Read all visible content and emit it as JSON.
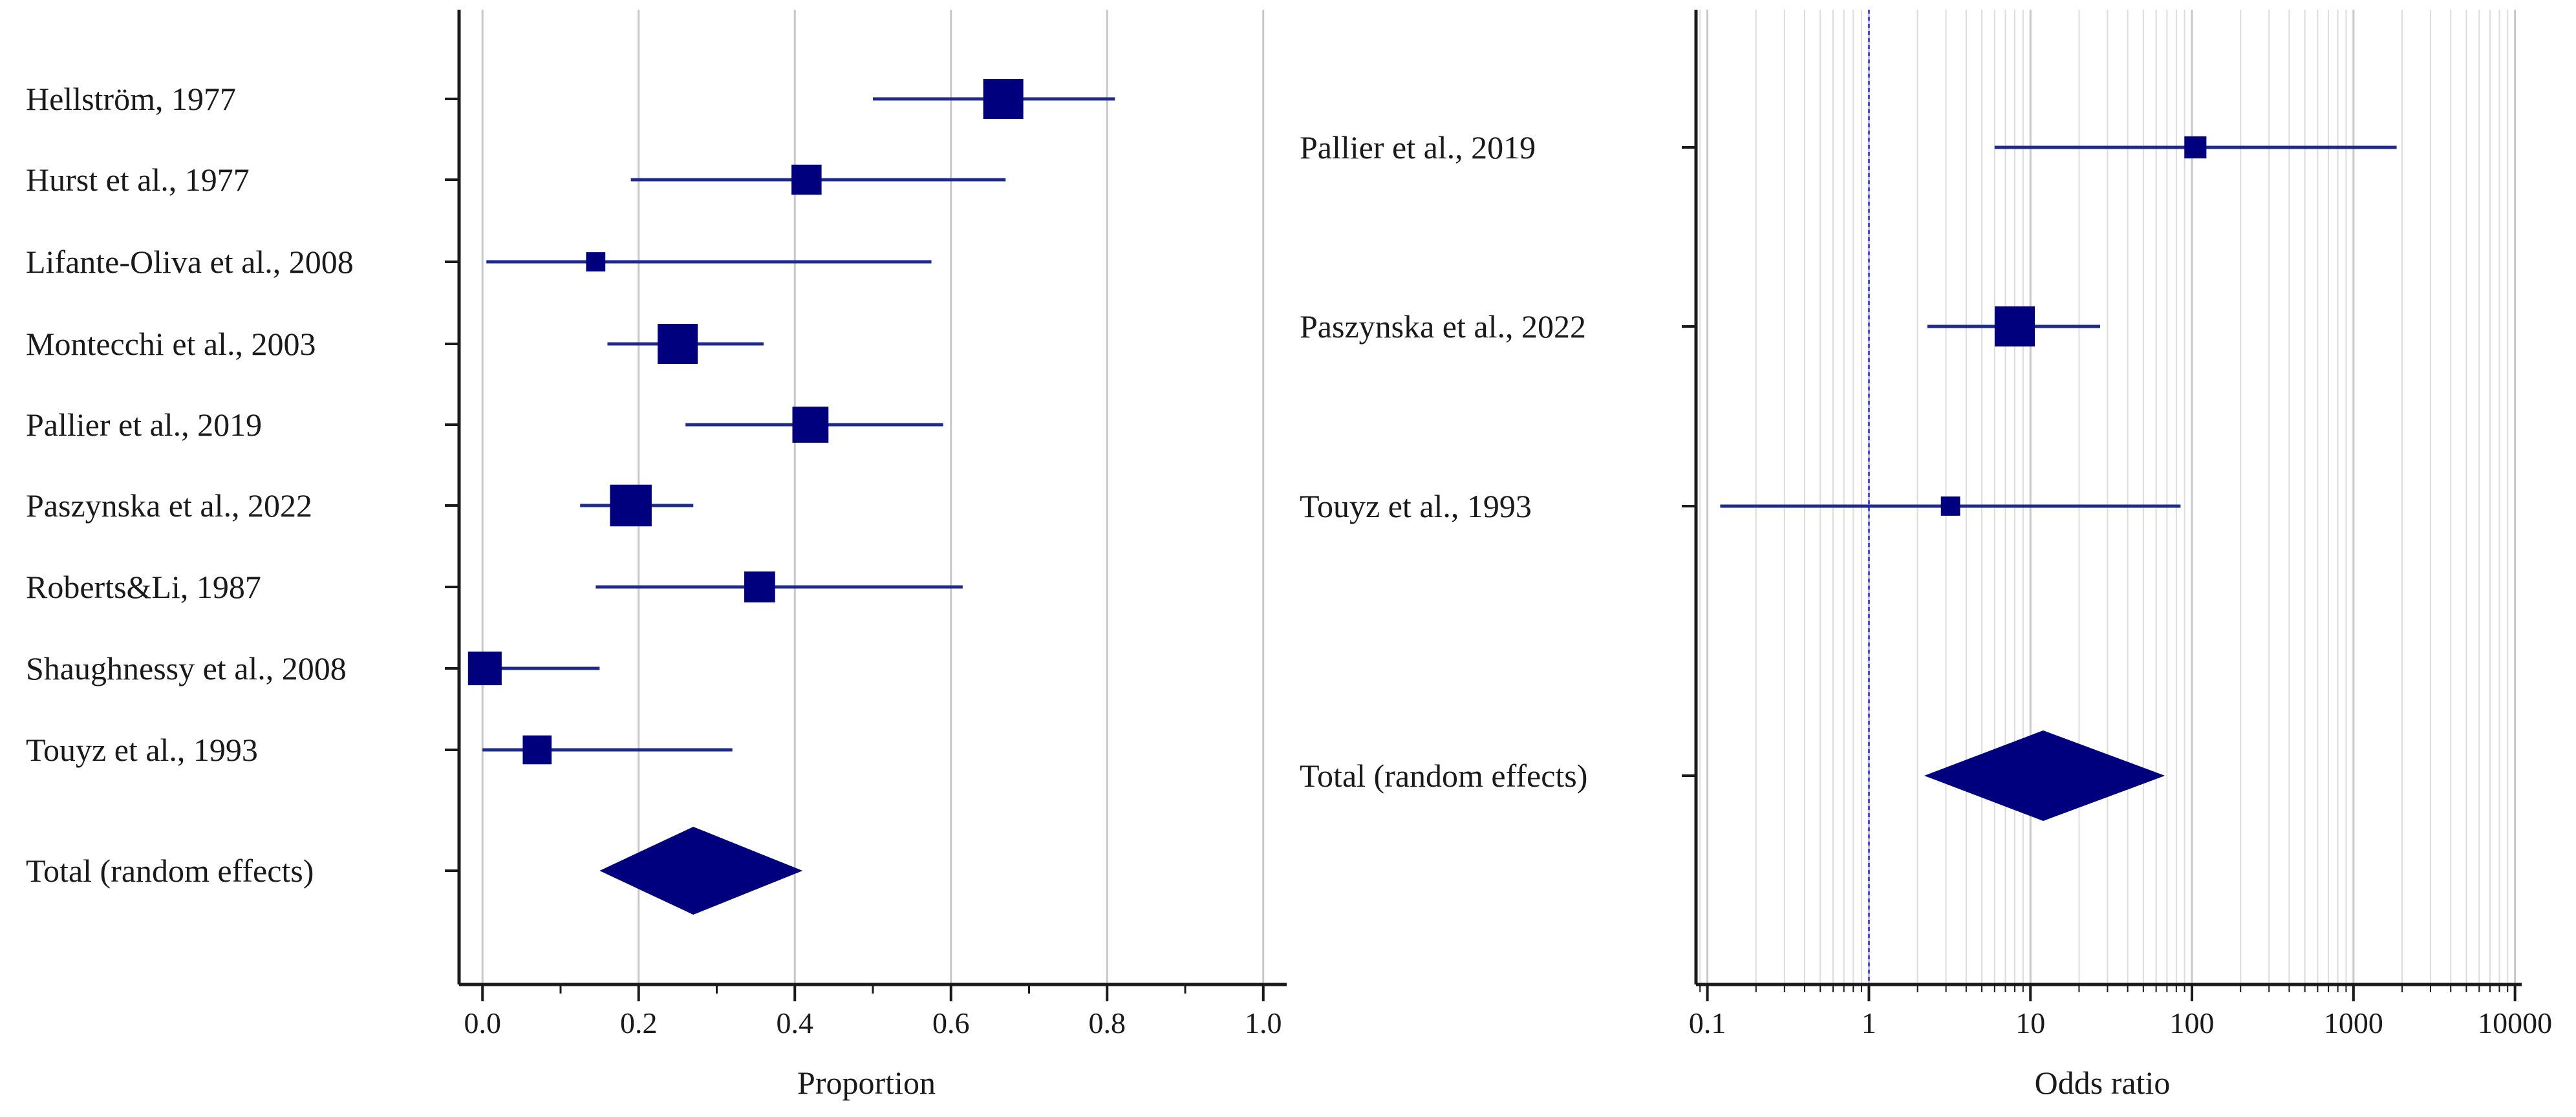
{
  "colors": {
    "marker": "#00007f",
    "ci_line": "#1f2a8c",
    "grid_major": "#c8c8c8",
    "grid_minor": "#dcdcdc",
    "axis": "#1a1a1a",
    "reference_line": "#4a4ae0"
  },
  "chart_data": [
    {
      "type": "forest",
      "name": "proportion-forest-plot",
      "xlabel": "Proportion",
      "xlim": [
        -0.03,
        1.03
      ],
      "ticks": [
        0.0,
        0.2,
        0.4,
        0.6,
        0.8,
        1.0
      ],
      "tick_labels": [
        "0.0",
        "0.2",
        "0.4",
        "0.6",
        "0.8",
        "1.0"
      ],
      "grid": true,
      "studies": [
        {
          "label": "Hellström, 1977",
          "estimate": 0.667,
          "lower": 0.5,
          "upper": 0.81,
          "weight": 1.0
        },
        {
          "label": "Hurst et al., 1977",
          "estimate": 0.415,
          "lower": 0.19,
          "upper": 0.67,
          "weight": 0.75
        },
        {
          "label": "Lifante-Oliva et al., 2008",
          "estimate": 0.145,
          "lower": 0.005,
          "upper": 0.575,
          "weight": 0.48
        },
        {
          "label": "Montecchi et al., 2003",
          "estimate": 0.25,
          "lower": 0.16,
          "upper": 0.36,
          "weight": 1.0
        },
        {
          "label": "Pallier et al., 2019",
          "estimate": 0.42,
          "lower": 0.26,
          "upper": 0.59,
          "weight": 0.9
        },
        {
          "label": "Paszynska et al., 2022",
          "estimate": 0.19,
          "lower": 0.125,
          "upper": 0.27,
          "weight": 1.04
        },
        {
          "label": "Roberts&Li, 1987",
          "estimate": 0.355,
          "lower": 0.145,
          "upper": 0.615,
          "weight": 0.77
        },
        {
          "label": "Shaughnessy et al., 2008",
          "estimate": 0.003,
          "lower": 0.0,
          "upper": 0.15,
          "weight": 0.84
        },
        {
          "label": "Touyz et al., 1993",
          "estimate": 0.07,
          "lower": 0.0,
          "upper": 0.32,
          "weight": 0.72
        }
      ],
      "total": {
        "label": "Total (random effects)",
        "estimate": 0.27,
        "lower": 0.15,
        "upper": 0.41
      }
    },
    {
      "type": "forest",
      "name": "odds-ratio-forest-plot",
      "xlabel": "Odds ratio",
      "scale": "log",
      "xlim": [
        0.085,
        11000
      ],
      "ticks": [
        0.1,
        1,
        10,
        100,
        1000,
        10000
      ],
      "tick_labels": [
        "0.1",
        "1",
        "10",
        "100",
        "1000",
        "10000"
      ],
      "reference": 1,
      "grid": true,
      "studies": [
        {
          "label": "Pallier et al., 2019",
          "estimate": 105,
          "lower": 6,
          "upper": 1850,
          "weight": 0.55
        },
        {
          "label": "Paszynska et al., 2022",
          "estimate": 8,
          "lower": 2.3,
          "upper": 27,
          "weight": 1.0
        },
        {
          "label": "Touyz et al., 1993",
          "estimate": 3.2,
          "lower": 0.12,
          "upper": 85,
          "weight": 0.48
        }
      ],
      "total": {
        "label": "Total (random effects)",
        "estimate": 12,
        "lower": 2.2,
        "upper": 68
      }
    }
  ]
}
